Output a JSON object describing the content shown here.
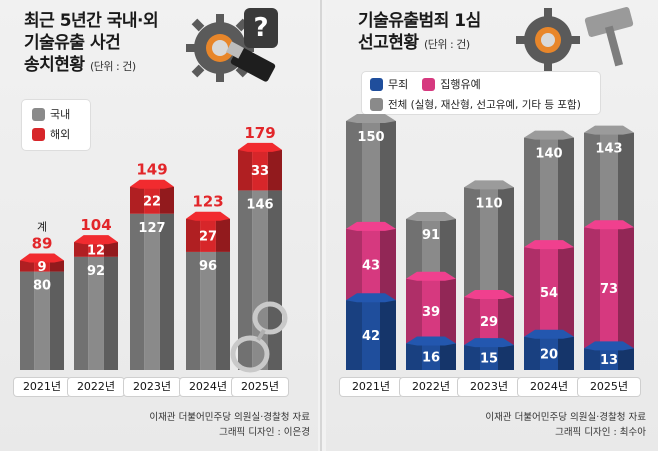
{
  "colors": {
    "domestic": "#8a8a8a",
    "overseas": "#d7262a",
    "total_text": "#e2262a",
    "acquittal": "#1f4e9c",
    "probation": "#d6397f",
    "all_sentences": "#8a8a8a"
  },
  "left": {
    "title_line1": "최근 5년간 국내·외",
    "title_line2": "기술유출 사건",
    "title_line3": "송치현황",
    "unit": "(단위 : 건)",
    "legend": [
      "국내",
      "해외"
    ],
    "total_prefix": "계",
    "source": "이재관 더불어민주당 의원실·경찰청 자료",
    "credit": "그래픽 디자인 : 이은경",
    "icons": [
      "gear-usb-icon",
      "question-mark-icon",
      "handcuffs-icon"
    ]
  },
  "right": {
    "title_line1": "기술유출범죄 1심",
    "title_line2": "선고현황",
    "unit": "(단위 : 건)",
    "legend": [
      "무죄",
      "집행유예",
      "전체 (실형, 재산형, 선고유예, 기타 등 포함)"
    ],
    "source": "이재관 더불어민주당 의원실·경찰청 자료",
    "credit": "그래픽 디자인 : 최수아",
    "icons": [
      "gear-icon",
      "gavel-icon"
    ]
  },
  "chart_data": [
    {
      "type": "bar",
      "title": "최근 5년간 국내·외 기술유출 사건 송치현황",
      "unit": "건",
      "categories": [
        "2021년",
        "2022년",
        "2023년",
        "2024년",
        "2025년"
      ],
      "series": [
        {
          "name": "국내",
          "values": [
            80,
            92,
            127,
            96,
            146
          ]
        },
        {
          "name": "해외",
          "values": [
            9,
            12,
            22,
            27,
            33
          ]
        }
      ],
      "totals": [
        89,
        104,
        149,
        123,
        179
      ],
      "stacked": true,
      "legend_position": "top-left"
    },
    {
      "type": "bar",
      "title": "기술유출범죄 1심 선고현황",
      "unit": "건",
      "categories": [
        "2021년",
        "2022년",
        "2023년",
        "2024년",
        "2025년"
      ],
      "series": [
        {
          "name": "무죄",
          "values": [
            42,
            16,
            15,
            20,
            13
          ]
        },
        {
          "name": "집행유예",
          "values": [
            43,
            39,
            29,
            54,
            73
          ]
        },
        {
          "name": "전체 (실형, 재산형, 선고유예, 기타 등 포함)",
          "values": [
            150,
            91,
            110,
            140,
            143
          ]
        }
      ],
      "overlaid": true,
      "legend_position": "top"
    }
  ]
}
